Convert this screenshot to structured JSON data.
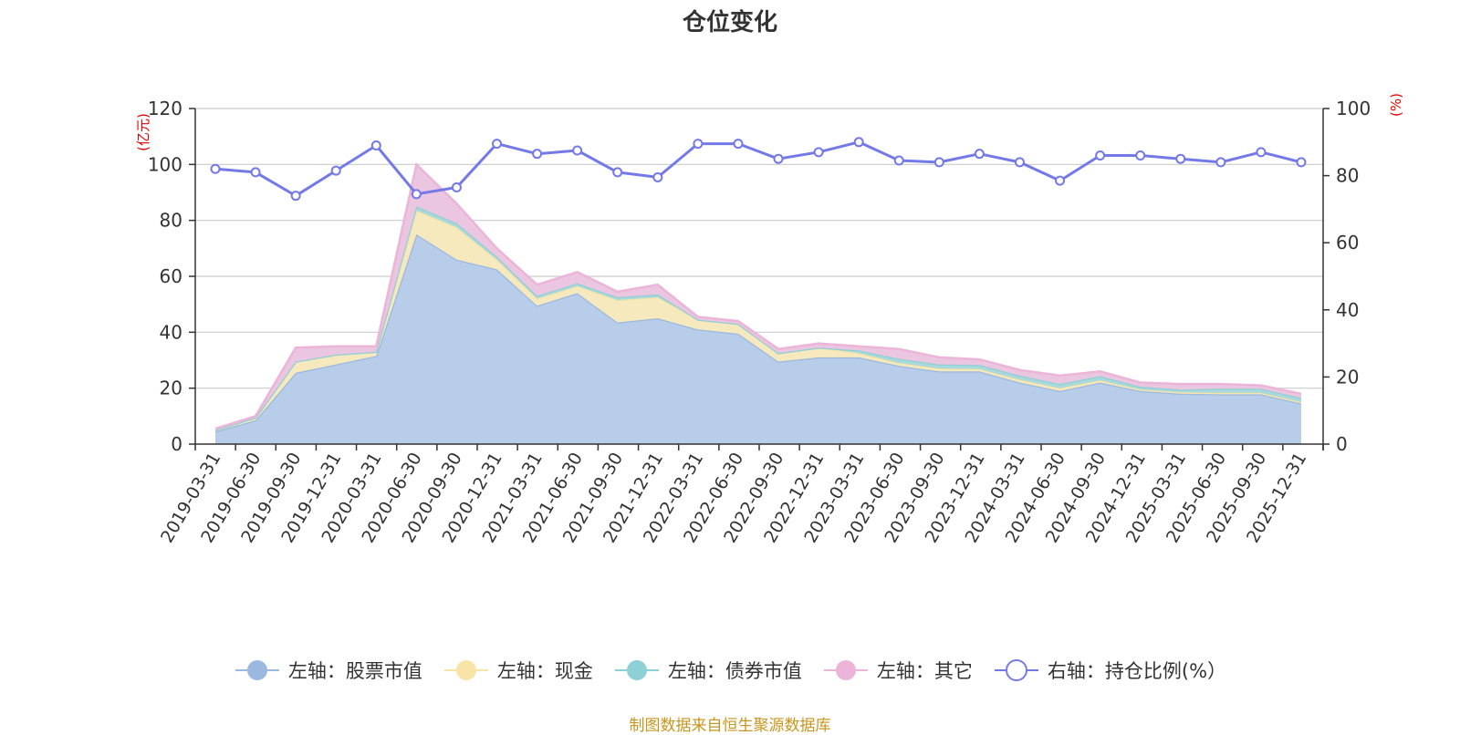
{
  "chart_data": {
    "type": "area",
    "title": "仓位变化",
    "left_unit": "(亿元)",
    "right_unit": "(%)",
    "ylim_left": [
      0,
      120
    ],
    "yticks_left": [
      0,
      20,
      40,
      60,
      80,
      100,
      120
    ],
    "ylim_right": [
      0,
      100
    ],
    "yticks_right": [
      0,
      20,
      40,
      60,
      80,
      100
    ],
    "categories": [
      "2019-03-31",
      "2019-06-30",
      "2019-09-30",
      "2019-12-31",
      "2020-03-31",
      "2020-06-30",
      "2020-09-30",
      "2020-12-31",
      "2021-03-31",
      "2021-06-30",
      "2021-09-30",
      "2021-12-31",
      "2022-03-31",
      "2022-06-30",
      "2022-09-30",
      "2022-12-31",
      "2023-03-31",
      "2023-06-30",
      "2023-09-30",
      "2023-12-31",
      "2024-03-31",
      "2024-06-30",
      "2024-09-30",
      "2024-12-31",
      "2025-03-31",
      "2025-06-30",
      "2025-09-30",
      "2025-12-31"
    ],
    "stacked_series": [
      {
        "name": "左轴：股票市值",
        "color": "#9bb8e0",
        "fill": "#b8cdea",
        "values": [
          4.5,
          8.5,
          25.5,
          28.5,
          31.5,
          75.0,
          66.0,
          62.5,
          49.5,
          54.0,
          43.5,
          45.0,
          41.0,
          39.5,
          29.5,
          31.0,
          31.0,
          28.0,
          26.0,
          26.0,
          22.0,
          19.0,
          22.0,
          19.0,
          18.0,
          17.8,
          17.8,
          14.5
        ]
      },
      {
        "name": "左轴：现金",
        "color": "#f7e4a6",
        "fill": "#f5e9bd",
        "values": [
          0.5,
          1.0,
          4.0,
          3.5,
          1.5,
          8.5,
          11.5,
          3.5,
          2.5,
          2.5,
          8.0,
          7.5,
          3.5,
          3.5,
          3.0,
          3.5,
          1.5,
          1.0,
          1.0,
          0.8,
          1.0,
          1.0,
          0.8,
          0.5,
          0.5,
          0.5,
          0.5,
          0.5
        ]
      },
      {
        "name": "左轴：债券市值",
        "color": "#8dd0d6",
        "fill": "#aad9dc",
        "values": [
          0.0,
          0.0,
          0.0,
          0.0,
          0.0,
          1.5,
          1.5,
          1.0,
          1.0,
          1.0,
          1.0,
          1.0,
          0.0,
          0.0,
          0.0,
          0.0,
          1.0,
          1.5,
          1.5,
          1.5,
          1.5,
          1.5,
          1.5,
          1.0,
          1.0,
          1.5,
          1.5,
          1.5
        ]
      },
      {
        "name": "左轴：其它",
        "color": "#ecb4d8",
        "fill": "#ebc6e0",
        "values": [
          0.5,
          0.5,
          5.0,
          3.0,
          2.0,
          15.0,
          7.0,
          3.0,
          4.0,
          4.0,
          2.0,
          3.5,
          1.0,
          1.0,
          1.5,
          1.5,
          1.5,
          3.5,
          2.5,
          2.0,
          2.0,
          3.0,
          1.7,
          1.5,
          2.0,
          1.7,
          1.2,
          1.5
        ]
      }
    ],
    "line_series": {
      "name": "右轴：持仓比例(%）",
      "color": "#7479e8",
      "values": [
        82.0,
        81.0,
        74.0,
        81.5,
        89.0,
        74.5,
        76.5,
        89.5,
        86.5,
        87.5,
        81.0,
        79.5,
        89.5,
        89.5,
        85.0,
        87.0,
        90.0,
        84.5,
        84.0,
        86.5,
        84.0,
        78.5,
        86.0,
        86.0,
        85.0,
        84.0,
        87.0,
        84.0
      ]
    },
    "legend": [
      "左轴：股票市值",
      "左轴：现金",
      "左轴：债券市值",
      "左轴：其它",
      "右轴：持仓比例(%）"
    ],
    "legend_position": "bottom-center",
    "grid": true
  },
  "footer": {
    "source": "制图数据来自恒生聚源数据库"
  }
}
